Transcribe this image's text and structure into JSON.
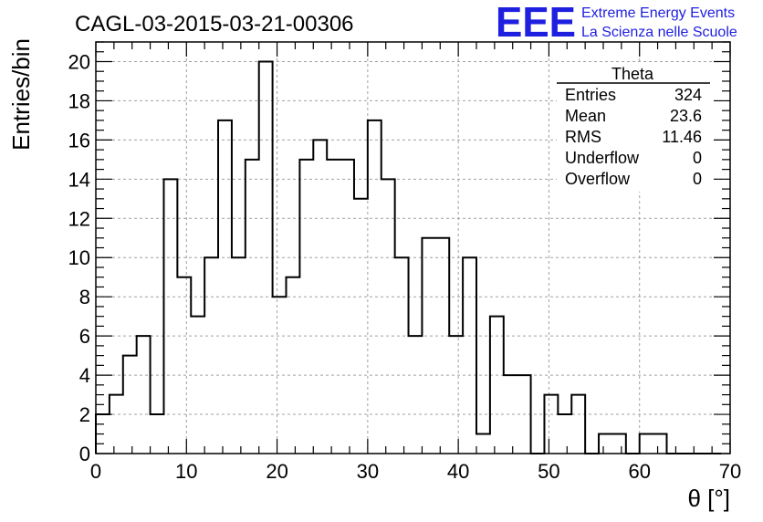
{
  "chart_data": {
    "type": "bar",
    "title": "CAGL-03-2015-03-21-00306",
    "xlabel": "θ [°]",
    "ylabel": "Entries/bin",
    "xlim": [
      0,
      70
    ],
    "ylim": [
      0,
      21
    ],
    "bin_width": 1.5,
    "x_ticks": [
      0,
      10,
      20,
      30,
      40,
      50,
      60,
      70
    ],
    "y_ticks": [
      0,
      2,
      4,
      6,
      8,
      10,
      12,
      14,
      16,
      18,
      20
    ],
    "grid": true,
    "values": [
      2,
      3,
      5,
      6,
      2,
      14,
      9,
      7,
      10,
      17,
      10,
      15,
      20,
      8,
      9,
      15,
      16,
      15,
      15,
      13,
      17,
      14,
      10,
      6,
      11,
      11,
      6,
      10,
      1,
      7,
      4,
      4,
      0,
      3,
      2,
      3,
      0,
      1,
      1,
      0,
      1,
      1,
      0,
      0,
      0,
      0
    ]
  },
  "stats": {
    "name": "Theta",
    "rows": [
      {
        "label": "Entries",
        "value": "324"
      },
      {
        "label": "Mean",
        "value": "23.6"
      },
      {
        "label": "RMS",
        "value": "11.46"
      },
      {
        "label": "Underflow",
        "value": "0"
      },
      {
        "label": "Overflow",
        "value": "0"
      }
    ]
  },
  "logo": {
    "mark": "EEE",
    "line1": "Extreme Energy Events",
    "line2": "La Scienza nelle Scuole",
    "color": "#1f1fe0"
  }
}
